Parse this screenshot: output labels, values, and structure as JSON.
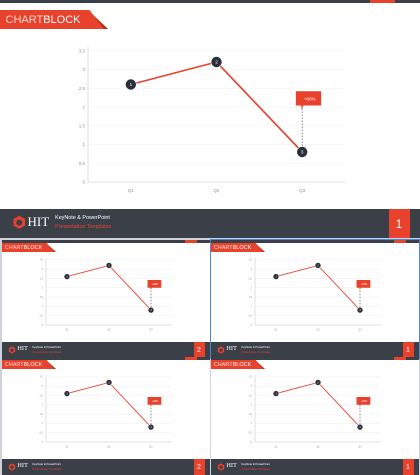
{
  "slides": [
    {
      "title_word1": "CHART",
      "title_word2": "BLOCK",
      "footer": {
        "brand": "HIT",
        "line1": "KeyNote & PowerPoint",
        "line2": "Presentation Templates"
      },
      "page_number": "1"
    },
    {
      "title_word1": "CHART",
      "title_word2": "BLOCK",
      "footer": {
        "brand": "HIT",
        "line1": "KeyNote & PowerPoint",
        "line2": "Presentation Templates"
      },
      "page_number": "2"
    },
    {
      "title_word1": "CHART",
      "title_word2": "BLOCK",
      "footer": {
        "brand": "HIT",
        "line1": "KeyNote & PowerPoint",
        "line2": "Presentation Templates"
      },
      "page_number": "1"
    },
    {
      "title_word1": "CHART",
      "title_word2": "BLOCK",
      "footer": {
        "brand": "HIT",
        "line1": "KeyNote & PowerPoint",
        "line2": "Presentation Templates"
      },
      "page_number": "2"
    },
    {
      "title_word1": "CHART",
      "title_word2": "BLOCK",
      "footer": {
        "brand": "HIT",
        "line1": "KeyNote & PowerPoint",
        "line2": "Presentation Templates"
      },
      "page_number": "1"
    }
  ],
  "colors": {
    "accent": "#e8412c",
    "dark": "#3b3f48",
    "marker": "#2a2f3a"
  },
  "chart_data": {
    "type": "line",
    "categories": [
      "Q1",
      "Q2",
      "Q3"
    ],
    "series": [
      {
        "values": [
          2.6,
          3.2,
          0.8
        ]
      }
    ],
    "point_labels": [
      "1",
      "2",
      "3"
    ],
    "ylim": [
      0,
      3.6
    ],
    "yticks": [
      0,
      0.5,
      1,
      1.5,
      2,
      2.5,
      3,
      3.5
    ],
    "ytick_labels": [
      "0",
      "0.5",
      "1",
      "1.5",
      "2",
      "2.5",
      "3",
      "3.5"
    ],
    "callout": {
      "text": "+60%",
      "point_index": 2
    },
    "grid": true
  }
}
